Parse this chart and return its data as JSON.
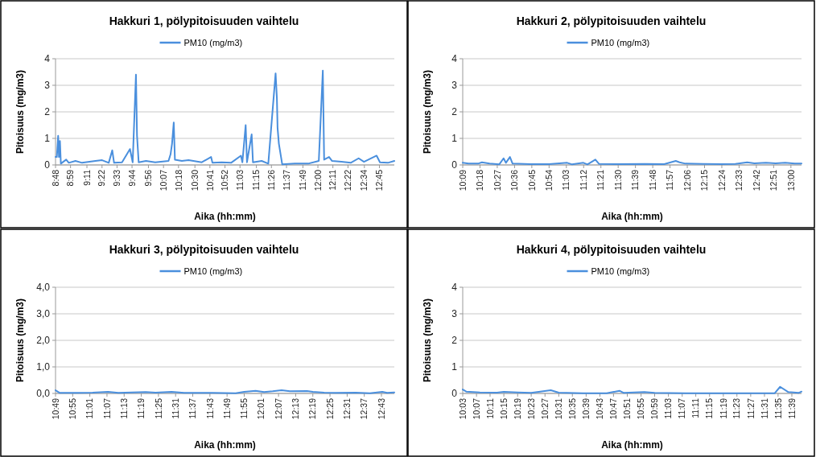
{
  "chart_data": [
    {
      "type": "line",
      "title": "Hakkuri 1, pölypitoisuuden vaihtelu",
      "xlabel": "Aika (hh:mm)",
      "ylabel": "Pitoisuus (mg/m3)",
      "legend": "top",
      "grid": "y",
      "ylim": [
        0,
        4
      ],
      "yticks": [
        0,
        1,
        2,
        3,
        4
      ],
      "xlim": [
        8.8,
        12.932
      ],
      "xticks": [
        {
          "value": 8.8,
          "label": "8:48"
        },
        {
          "value": 8.983,
          "label": "8:59"
        },
        {
          "value": 9.183,
          "label": "9:11"
        },
        {
          "value": 9.367,
          "label": "9:22"
        },
        {
          "value": 9.55,
          "label": "9:33"
        },
        {
          "value": 9.733,
          "label": "9:44"
        },
        {
          "value": 9.933,
          "label": "9:56"
        },
        {
          "value": 10.117,
          "label": "10:07"
        },
        {
          "value": 10.3,
          "label": "10:18"
        },
        {
          "value": 10.5,
          "label": "10:30"
        },
        {
          "value": 10.683,
          "label": "10:41"
        },
        {
          "value": 10.867,
          "label": "10:52"
        },
        {
          "value": 11.05,
          "label": "11:03"
        },
        {
          "value": 11.25,
          "label": "11:15"
        },
        {
          "value": 11.433,
          "label": "11:26"
        },
        {
          "value": 11.617,
          "label": "11:37"
        },
        {
          "value": 11.817,
          "label": "11:49"
        },
        {
          "value": 12.0,
          "label": "12:00"
        },
        {
          "value": 12.183,
          "label": "12:11"
        },
        {
          "value": 12.367,
          "label": "12:22"
        },
        {
          "value": 12.567,
          "label": "12:34"
        },
        {
          "value": 12.75,
          "label": "12:45"
        }
      ],
      "series": [
        {
          "name": "PM10 (mg/m3)",
          "color": "#4a8fdd",
          "x": [
            8.8,
            8.816,
            8.832,
            8.842,
            8.854,
            8.865,
            8.93,
            8.962,
            9.043,
            9.124,
            9.287,
            9.368,
            9.449,
            9.492,
            9.514,
            9.611,
            9.708,
            9.741,
            9.781,
            9.794,
            9.814,
            9.903,
            10.016,
            10.178,
            10.203,
            10.221,
            10.242,
            10.256,
            10.341,
            10.422,
            10.584,
            10.697,
            10.714,
            10.827,
            10.941,
            11.061,
            11.079,
            11.119,
            11.135,
            11.192,
            11.208,
            11.314,
            11.395,
            11.484,
            11.5,
            11.508,
            11.524,
            11.565,
            11.719,
            11.881,
            12.011,
            12.06,
            12.076,
            12.136,
            12.173,
            12.287,
            12.4,
            12.497,
            12.562,
            12.716,
            12.757,
            12.854,
            12.932
          ],
          "values": [
            0.3,
            0.3,
            1.1,
            0.3,
            0.9,
            0.05,
            0.2,
            0.08,
            0.15,
            0.08,
            0.15,
            0.18,
            0.08,
            0.55,
            0.08,
            0.1,
            0.6,
            0.1,
            3.4,
            1.1,
            0.1,
            0.15,
            0.1,
            0.15,
            0.4,
            0.8,
            1.6,
            0.2,
            0.15,
            0.18,
            0.1,
            0.3,
            0.08,
            0.1,
            0.08,
            0.35,
            0.1,
            1.5,
            0.1,
            1.15,
            0.1,
            0.15,
            0.05,
            3.45,
            2.5,
            1.4,
            0.8,
            0.02,
            0.05,
            0.05,
            0.15,
            3.55,
            0.2,
            0.3,
            0.15,
            0.12,
            0.08,
            0.25,
            0.12,
            0.35,
            0.1,
            0.08,
            0.15
          ]
        }
      ]
    },
    {
      "type": "line",
      "title": "Hakkuri 2, pölypitoisuuden vaihtelu",
      "xlabel": "Aika (hh:mm)",
      "ylabel": "Pitoisuus (mg/m3)",
      "legend": "top",
      "grid": "y",
      "ylim": [
        0,
        4
      ],
      "yticks": [
        0,
        1,
        2,
        3,
        4
      ],
      "xlim": [
        10.15,
        13.092
      ],
      "xticks": [
        {
          "value": 10.15,
          "label": "10:09"
        },
        {
          "value": 10.3,
          "label": "10:18"
        },
        {
          "value": 10.45,
          "label": "10:27"
        },
        {
          "value": 10.6,
          "label": "10:36"
        },
        {
          "value": 10.75,
          "label": "10:45"
        },
        {
          "value": 10.9,
          "label": "10:54"
        },
        {
          "value": 11.05,
          "label": "11:03"
        },
        {
          "value": 11.2,
          "label": "11:12"
        },
        {
          "value": 11.35,
          "label": "11:21"
        },
        {
          "value": 11.5,
          "label": "11:30"
        },
        {
          "value": 11.65,
          "label": "11:39"
        },
        {
          "value": 11.8,
          "label": "11:48"
        },
        {
          "value": 11.95,
          "label": "11:57"
        },
        {
          "value": 12.1,
          "label": "12:06"
        },
        {
          "value": 12.25,
          "label": "12:15"
        },
        {
          "value": 12.4,
          "label": "12:24"
        },
        {
          "value": 12.55,
          "label": "12:33"
        },
        {
          "value": 12.7,
          "label": "12:42"
        },
        {
          "value": 12.85,
          "label": "12:51"
        },
        {
          "value": 13.0,
          "label": "13:00"
        }
      ],
      "series": [
        {
          "name": "PM10 (mg/m3)",
          "color": "#4a8fdd",
          "x": [
            10.15,
            10.2,
            10.283,
            10.317,
            10.383,
            10.467,
            10.505,
            10.525,
            10.56,
            10.583,
            10.733,
            10.9,
            11.057,
            11.1,
            11.198,
            11.233,
            11.302,
            11.333,
            11.483,
            11.733,
            11.9,
            12.0,
            12.033,
            12.083,
            12.233,
            12.4,
            12.517,
            12.62,
            12.683,
            12.783,
            12.867,
            12.95,
            13.033,
            13.092
          ],
          "values": [
            0.08,
            0.05,
            0.05,
            0.1,
            0.05,
            0.02,
            0.25,
            0.08,
            0.3,
            0.05,
            0.03,
            0.03,
            0.08,
            0.02,
            0.08,
            0.02,
            0.2,
            0.04,
            0.03,
            0.04,
            0.03,
            0.15,
            0.1,
            0.05,
            0.04,
            0.03,
            0.04,
            0.1,
            0.06,
            0.08,
            0.06,
            0.08,
            0.05,
            0.05
          ]
        }
      ]
    },
    {
      "type": "line",
      "title": "Hakkuri 3, pölypitoisuuden vaihtelu",
      "xlabel": "Aika (hh:mm)",
      "ylabel": "Pitoisuus (mg/m3)",
      "legend": "top",
      "grid": "y",
      "ylim": [
        0,
        4
      ],
      "yticks": [
        {
          "value": 0,
          "label": "0,0"
        },
        {
          "value": 1,
          "label": "1,0"
        },
        {
          "value": 2,
          "label": "2,0"
        },
        {
          "value": 3,
          "label": "3,0"
        },
        {
          "value": 4,
          "label": "4,0"
        }
      ],
      "xlim": [
        10.817,
        12.792
      ],
      "xticks": [
        {
          "value": 10.817,
          "label": "10:49"
        },
        {
          "value": 10.917,
          "label": "10:55"
        },
        {
          "value": 11.017,
          "label": "11:01"
        },
        {
          "value": 11.117,
          "label": "11:07"
        },
        {
          "value": 11.217,
          "label": "11:13"
        },
        {
          "value": 11.317,
          "label": "11:19"
        },
        {
          "value": 11.417,
          "label": "11:25"
        },
        {
          "value": 11.517,
          "label": "11:31"
        },
        {
          "value": 11.617,
          "label": "11:37"
        },
        {
          "value": 11.717,
          "label": "11:43"
        },
        {
          "value": 11.817,
          "label": "11:49"
        },
        {
          "value": 11.917,
          "label": "11:55"
        },
        {
          "value": 12.017,
          "label": "12:01"
        },
        {
          "value": 12.117,
          "label": "12:07"
        },
        {
          "value": 12.217,
          "label": "12:13"
        },
        {
          "value": 12.317,
          "label": "12:19"
        },
        {
          "value": 12.417,
          "label": "12:25"
        },
        {
          "value": 12.517,
          "label": "12:31"
        },
        {
          "value": 12.617,
          "label": "12:37"
        },
        {
          "value": 12.717,
          "label": "12:43"
        }
      ],
      "series": [
        {
          "name": "PM10 (mg/m3)",
          "color": "#4a8fdd",
          "x": [
            10.817,
            10.842,
            10.95,
            11.033,
            11.123,
            11.183,
            11.343,
            11.4,
            11.493,
            11.567,
            11.733,
            11.867,
            11.917,
            11.983,
            12.033,
            12.083,
            12.135,
            12.183,
            12.283,
            12.317,
            12.383,
            12.45,
            12.567,
            12.65,
            12.722,
            12.75,
            12.792
          ],
          "values": [
            0.12,
            0.02,
            0.02,
            0.03,
            0.06,
            0.02,
            0.05,
            0.03,
            0.06,
            0.02,
            0.02,
            0.01,
            0.06,
            0.1,
            0.05,
            0.08,
            0.12,
            0.08,
            0.09,
            0.06,
            0.03,
            0.02,
            0.03,
            0.01,
            0.06,
            0.02,
            0.04
          ]
        }
      ]
    },
    {
      "type": "line",
      "title": "Hakkuri 4, pölypitoisuuden vaihtelu",
      "xlabel": "Aika (hh:mm)",
      "ylabel": "Pitoisuus (mg/m3)",
      "legend": "top",
      "grid": "y",
      "ylim": [
        0,
        4
      ],
      "yticks": [
        0,
        1,
        2,
        3,
        4
      ],
      "xlim": [
        10.05,
        11.697
      ],
      "xticks": [
        {
          "value": 10.05,
          "label": "10:03"
        },
        {
          "value": 10.117,
          "label": "10:07"
        },
        {
          "value": 10.183,
          "label": "10:11"
        },
        {
          "value": 10.25,
          "label": "10:15"
        },
        {
          "value": 10.317,
          "label": "10:19"
        },
        {
          "value": 10.383,
          "label": "10:23"
        },
        {
          "value": 10.45,
          "label": "10:27"
        },
        {
          "value": 10.517,
          "label": "10:31"
        },
        {
          "value": 10.583,
          "label": "10:35"
        },
        {
          "value": 10.65,
          "label": "10:39"
        },
        {
          "value": 10.717,
          "label": "10:43"
        },
        {
          "value": 10.783,
          "label": "10:47"
        },
        {
          "value": 10.85,
          "label": "10:51"
        },
        {
          "value": 10.917,
          "label": "10:55"
        },
        {
          "value": 10.983,
          "label": "10:59"
        },
        {
          "value": 11.05,
          "label": "11:03"
        },
        {
          "value": 11.117,
          "label": "11:07"
        },
        {
          "value": 11.183,
          "label": "11:11"
        },
        {
          "value": 11.25,
          "label": "11:15"
        },
        {
          "value": 11.317,
          "label": "11:19"
        },
        {
          "value": 11.383,
          "label": "11:23"
        },
        {
          "value": 11.45,
          "label": "11:27"
        },
        {
          "value": 11.517,
          "label": "11:31"
        },
        {
          "value": 11.583,
          "label": "11:35"
        },
        {
          "value": 11.65,
          "label": "11:39"
        }
      ],
      "series": [
        {
          "name": "PM10 (mg/m3)",
          "color": "#4a8fdd",
          "x": [
            10.05,
            10.067,
            10.133,
            10.217,
            10.25,
            10.317,
            10.383,
            10.478,
            10.517,
            10.633,
            10.75,
            10.812,
            10.833,
            10.933,
            10.983,
            11.133,
            11.383,
            11.567,
            11.593,
            11.633,
            11.683,
            11.697
          ],
          "values": [
            0.15,
            0.07,
            0.04,
            0.03,
            0.06,
            0.04,
            0.02,
            0.12,
            0.03,
            0.01,
            0.01,
            0.1,
            0.02,
            0.05,
            0.02,
            0.01,
            0.01,
            0.01,
            0.25,
            0.05,
            0.02,
            0.07
          ]
        }
      ]
    }
  ]
}
